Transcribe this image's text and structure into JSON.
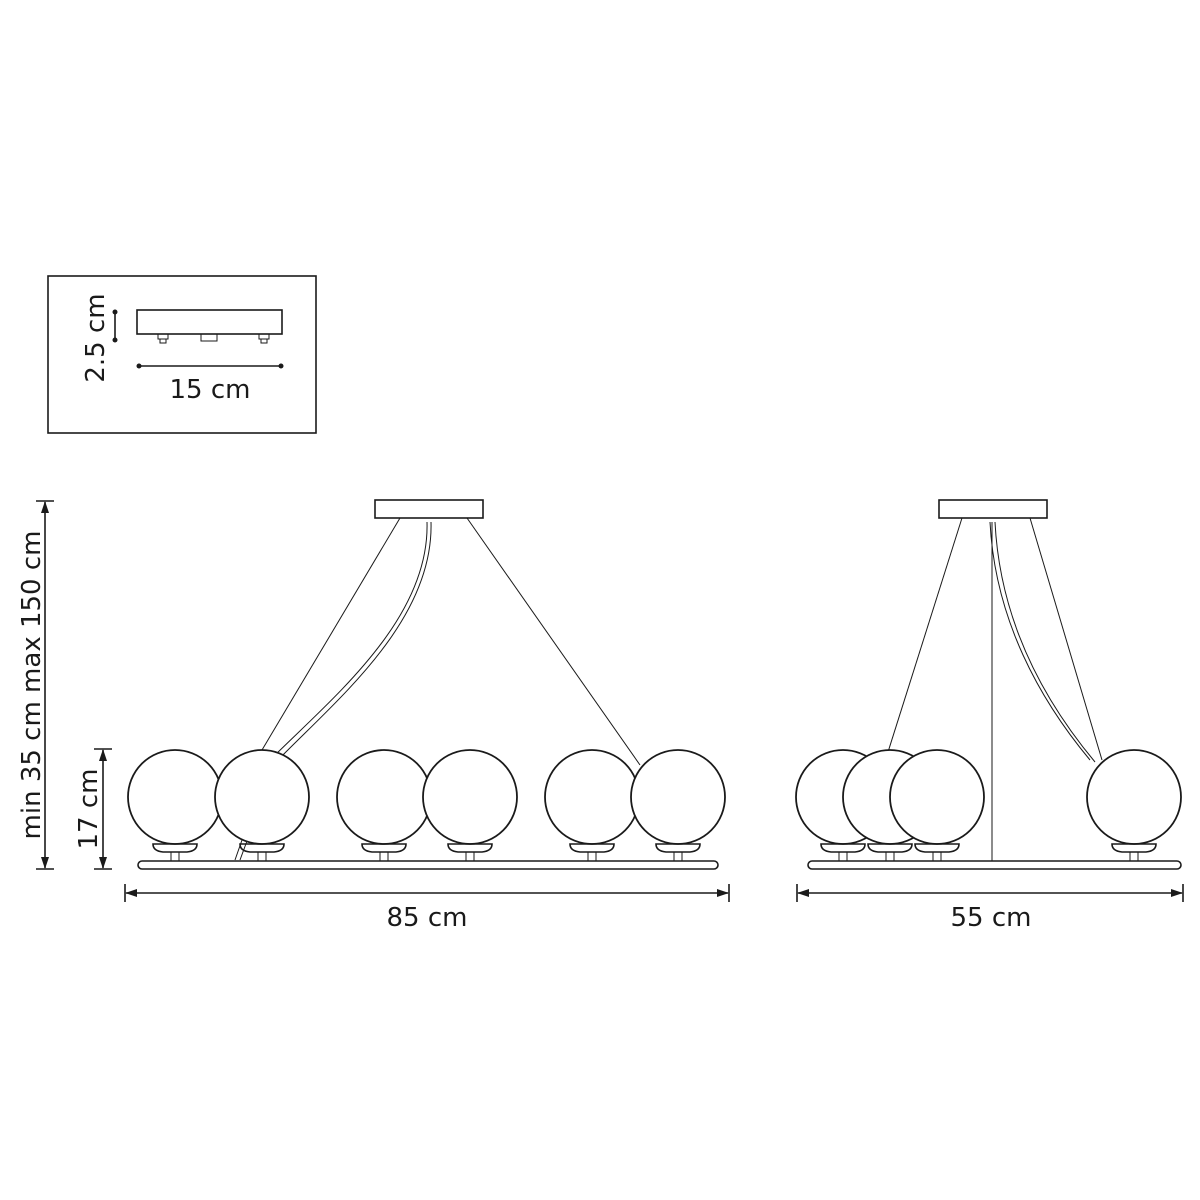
{
  "inset": {
    "height_label": "2.5 cm",
    "width_label": "15 cm"
  },
  "front_view": {
    "width_label": "85 cm",
    "height_label": "min 35 cm max 150 cm",
    "globe_height_label": "17 cm",
    "globe_count": 6
  },
  "side_view": {
    "width_label": "55 cm",
    "globe_count": 4
  },
  "colors": {
    "line": "#1a1a1a",
    "background": "#ffffff"
  }
}
